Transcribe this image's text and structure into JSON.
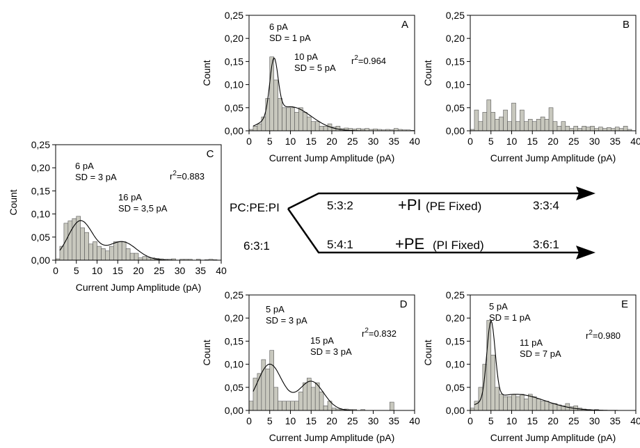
{
  "chart_data": [
    {
      "panel": "A",
      "type": "bar",
      "xlabel": "Current Jump Amplitude (pA)",
      "ylabel": "Count",
      "xlim": [
        0,
        40
      ],
      "ylim": [
        0,
        0.25
      ],
      "xticks": [
        "0",
        "5",
        "10",
        "15",
        "20",
        "25",
        "30",
        "35",
        "40"
      ],
      "yticks": [
        "0,00",
        "0,05",
        "0,10",
        "0,15",
        "0,20",
        "0,25"
      ],
      "bin_width": 1,
      "x": [
        1,
        2,
        3,
        4,
        5,
        6,
        7,
        8,
        9,
        10,
        11,
        12,
        13,
        14,
        15,
        16,
        17,
        18,
        19,
        20,
        21,
        22,
        23,
        24,
        25,
        26,
        27,
        28,
        29,
        30,
        31,
        32,
        33,
        34,
        35,
        36,
        37,
        38,
        39,
        40
      ],
      "values": [
        0.003,
        0.01,
        0.015,
        0.03,
        0.07,
        0.16,
        0.11,
        0.07,
        0.05,
        0.05,
        0.05,
        0.04,
        0.05,
        0.04,
        0.03,
        0.02,
        0.02,
        0.01,
        0.01,
        0.015,
        0.008,
        0.01,
        0.005,
        0.006,
        0.005,
        0.004,
        0.005,
        0.004,
        0.005,
        0.003,
        0.004,
        0.003,
        0.002,
        0.003,
        0.002,
        0.005,
        0.003,
        0.002,
        0.002,
        0.001
      ],
      "fit": {
        "components": [
          {
            "mean": 6,
            "sd": 1,
            "amp": 0.12
          },
          {
            "mean": 10,
            "sd": 5,
            "amp": 0.052
          }
        ]
      },
      "annotations": [
        "6 pA",
        "SD = 1 pA",
        "10 pA",
        "SD = 5 pA"
      ],
      "r2_label": "r",
      "r2_sup": "2",
      "r2_value": "=0.964"
    },
    {
      "panel": "B",
      "type": "bar",
      "xlabel": "Current Jump Amplitude (pA)",
      "ylabel": "Count",
      "xlim": [
        0,
        40
      ],
      "ylim": [
        0,
        0.25
      ],
      "xticks": [
        "0",
        "5",
        "10",
        "15",
        "20",
        "25",
        "30",
        "35",
        "40"
      ],
      "yticks": [
        "0,00",
        "0,05",
        "0,10",
        "0,15",
        "0,20",
        "0,25"
      ],
      "bin_width": 1,
      "x": [
        1,
        2,
        3,
        4,
        5,
        6,
        7,
        8,
        9,
        10,
        11,
        12,
        13,
        14,
        15,
        16,
        17,
        18,
        19,
        20,
        21,
        22,
        23,
        24,
        25,
        26,
        27,
        28,
        29,
        30,
        31,
        32,
        33,
        34,
        35,
        36,
        37,
        38,
        39,
        40
      ],
      "values": [
        0.003,
        0.045,
        0.02,
        0.04,
        0.067,
        0.04,
        0.025,
        0.03,
        0.045,
        0.02,
        0.06,
        0.02,
        0.045,
        0.02,
        0.025,
        0.02,
        0.025,
        0.03,
        0.025,
        0.05,
        0.02,
        0.01,
        0.02,
        0.01,
        0.005,
        0.01,
        0.005,
        0.01,
        0.008,
        0.01,
        0.005,
        0.008,
        0.005,
        0.007,
        0.005,
        0.008,
        0.005,
        0.01,
        0.003,
        0.0
      ],
      "fit": null
    },
    {
      "panel": "C",
      "type": "bar",
      "xlabel": "Current Jump Amplitude (pA)",
      "ylabel": "Count",
      "xlim": [
        0,
        40
      ],
      "ylim": [
        0,
        0.25
      ],
      "xticks": [
        "0",
        "5",
        "10",
        "15",
        "20",
        "25",
        "30",
        "35",
        "40"
      ],
      "yticks": [
        "0,00",
        "0,05",
        "0,10",
        "0,15",
        "0,20",
        "0,25"
      ],
      "bin_width": 1,
      "x": [
        1,
        2,
        3,
        4,
        5,
        6,
        7,
        8,
        9,
        10,
        11,
        12,
        13,
        14,
        15,
        16,
        17,
        18,
        19,
        20,
        21,
        22,
        23,
        24,
        25,
        26,
        27,
        28,
        29,
        30,
        31,
        32,
        33,
        34,
        35,
        36,
        37,
        38,
        39,
        40
      ],
      "values": [
        0.003,
        0.03,
        0.08,
        0.085,
        0.09,
        0.095,
        0.07,
        0.06,
        0.035,
        0.04,
        0.03,
        0.025,
        0.02,
        0.03,
        0.04,
        0.04,
        0.04,
        0.025,
        0.015,
        0.015,
        0.005,
        0.008,
        0.005,
        0.005,
        0.004,
        0.003,
        0.002,
        0.002,
        0.003,
        0.0,
        0.002,
        0.002,
        0.002,
        0.0,
        0.002,
        0.0,
        0.001,
        0.002,
        0.001,
        0.0
      ],
      "fit": {
        "components": [
          {
            "mean": 6,
            "sd": 3,
            "amp": 0.085
          },
          {
            "mean": 16,
            "sd": 3.5,
            "amp": 0.04
          }
        ]
      },
      "annotations": [
        "6 pA",
        "SD = 3 pA",
        "16 pA",
        "SD = 3,5 pA"
      ],
      "r2_label": "r",
      "r2_sup": "2",
      "r2_value": "=0.883"
    },
    {
      "panel": "D",
      "type": "bar",
      "xlabel": "Current Jump Amplitude (pA)",
      "ylabel": "Count",
      "xlim": [
        0,
        40
      ],
      "ylim": [
        0,
        0.25
      ],
      "xticks": [
        "0",
        "5",
        "10",
        "15",
        "20",
        "25",
        "30",
        "35",
        "40"
      ],
      "yticks": [
        "0,00",
        "0,05",
        "0,10",
        "0,15",
        "0,20",
        "0,25"
      ],
      "bin_width": 1,
      "x": [
        1,
        2,
        3,
        4,
        5,
        6,
        7,
        8,
        9,
        10,
        11,
        12,
        13,
        14,
        15,
        16,
        17,
        18,
        19,
        20,
        21,
        22,
        23,
        24,
        25,
        26,
        27,
        28,
        29,
        30,
        31,
        32,
        33,
        34,
        35,
        36,
        37,
        38,
        39,
        40
      ],
      "values": [
        0.02,
        0.07,
        0.08,
        0.11,
        0.09,
        0.13,
        0.05,
        0.02,
        0.02,
        0.02,
        0.02,
        0.02,
        0.04,
        0.06,
        0.07,
        0.05,
        0.06,
        0.04,
        0.01,
        0.02,
        0.005,
        0.003,
        0.002,
        0.003,
        0.002,
        0.002,
        0.0,
        0.002,
        0.0,
        0.0,
        0.0,
        0.0,
        0.0,
        0.0,
        0.018,
        0.0,
        0.0,
        0.0,
        0.0,
        0.0
      ],
      "fit": {
        "components": [
          {
            "mean": 5,
            "sd": 3,
            "amp": 0.1
          },
          {
            "mean": 15,
            "sd": 3,
            "amp": 0.063
          }
        ]
      },
      "annotations": [
        "5 pA",
        "SD = 3 pA",
        "15 pA",
        "SD = 3 pA"
      ],
      "r2_label": "r",
      "r2_sup": "2",
      "r2_value": "=0.832"
    },
    {
      "panel": "E",
      "type": "bar",
      "xlabel": "Current Jump Amplitude (pA)",
      "ylabel": "Count",
      "xlim": [
        0,
        40
      ],
      "ylim": [
        0,
        0.25
      ],
      "xticks": [
        "0",
        "5",
        "10",
        "15",
        "20",
        "25",
        "30",
        "35",
        "40"
      ],
      "yticks": [
        "0,00",
        "0,05",
        "0,10",
        "0,15",
        "0,20",
        "0,25"
      ],
      "bin_width": 1,
      "x": [
        1,
        2,
        3,
        4,
        5,
        6,
        7,
        8,
        9,
        10,
        11,
        12,
        13,
        14,
        15,
        16,
        17,
        18,
        19,
        20,
        21,
        22,
        23,
        24,
        25,
        26,
        27,
        28,
        29,
        30,
        31,
        32,
        33,
        34,
        35,
        36,
        37,
        38,
        39,
        40
      ],
      "values": [
        0.005,
        0.02,
        0.05,
        0.1,
        0.195,
        0.12,
        0.05,
        0.035,
        0.03,
        0.03,
        0.035,
        0.03,
        0.035,
        0.025,
        0.035,
        0.03,
        0.025,
        0.02,
        0.02,
        0.015,
        0.015,
        0.012,
        0.01,
        0.015,
        0.008,
        0.01,
        0.005,
        0.003,
        0.002,
        0.0,
        0.002,
        0.0,
        0.0,
        0.0,
        0.0,
        0.0,
        0.0,
        0.0,
        0.0,
        0.0
      ],
      "fit": {
        "components": [
          {
            "mean": 5,
            "sd": 1,
            "amp": 0.17
          },
          {
            "mean": 11,
            "sd": 7,
            "amp": 0.035
          }
        ]
      },
      "annotations": [
        "5 pA",
        "SD = 1 pA",
        "11 pA",
        "SD = 7 pA"
      ],
      "r2_label": "r",
      "r2_sup": "2",
      "r2_value": "=0.980"
    }
  ],
  "schema": {
    "lipid_label": "PC:PE:PI",
    "start_ratio": "6:3:1",
    "upper_mid_ratio": "5:3:2",
    "upper_plus": "+PI",
    "upper_fixed": "(PE Fixed)",
    "upper_end_ratio": "3:3:4",
    "lower_mid_ratio": "5:4:1",
    "lower_plus": "+PE",
    "lower_fixed": "(PI Fixed)",
    "lower_end_ratio": "3:6:1"
  }
}
